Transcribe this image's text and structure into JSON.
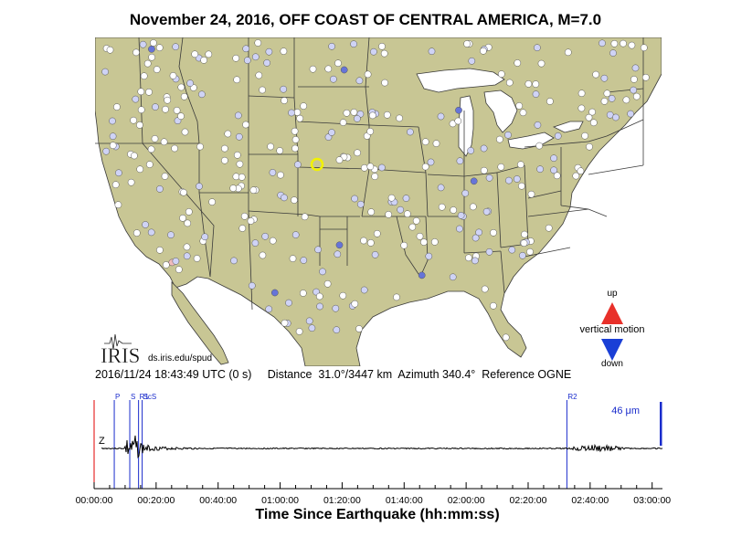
{
  "title": "November 24, 2016, OFF COAST OF CENTRAL AMERICA, M=7.0",
  "map": {
    "logo_text": "IRIS",
    "url_text": "ds.iris.edu/spud",
    "legend": {
      "up_label": "up",
      "center_label": "vertical motion",
      "down_label": "down",
      "up_color": "#e8302a",
      "down_color": "#1a3fd6"
    },
    "colors": {
      "land": "#c8c694",
      "water": "#ffffff",
      "border": "#3a3a3a",
      "station_neutral": "#ffffff",
      "station_light_down": "#cfd3f5",
      "station_down": "#6674d8",
      "station_light_up": "#f1bcbc",
      "highlight_ring": "#f2f200"
    }
  },
  "info": {
    "datetime": "2016/11/24 18:43:49 UTC (0 s)",
    "distance": "Distance  31.0°/3447 km",
    "azimuth": "Azimuth 340.4°",
    "reference": "Reference OGNE"
  },
  "chart_data": {
    "type": "line",
    "xlabel": "Time Since Earthquake (hh:mm:ss)",
    "component_label": "Z",
    "xlim_seconds": [
      0,
      11000
    ],
    "tick_labels": [
      "00:00:00",
      "00:20:00",
      "00:40:00",
      "01:00:00",
      "01:20:00",
      "01:40:00",
      "02:00:00",
      "02:20:00",
      "02:40:00",
      "03:00:00"
    ],
    "tick_values_seconds": [
      0,
      1200,
      2400,
      3600,
      4800,
      6000,
      7200,
      8400,
      9600,
      10800
    ],
    "phases": [
      {
        "label": "P",
        "time_s": 390
      },
      {
        "label": "S",
        "time_s": 690
      },
      {
        "label": "R1",
        "time_s": 860
      },
      {
        "label": "ScS",
        "time_s": 930
      },
      {
        "label": "R2",
        "time_s": 9150
      }
    ],
    "scale_label": "46 μm",
    "current_time_s": 0
  }
}
